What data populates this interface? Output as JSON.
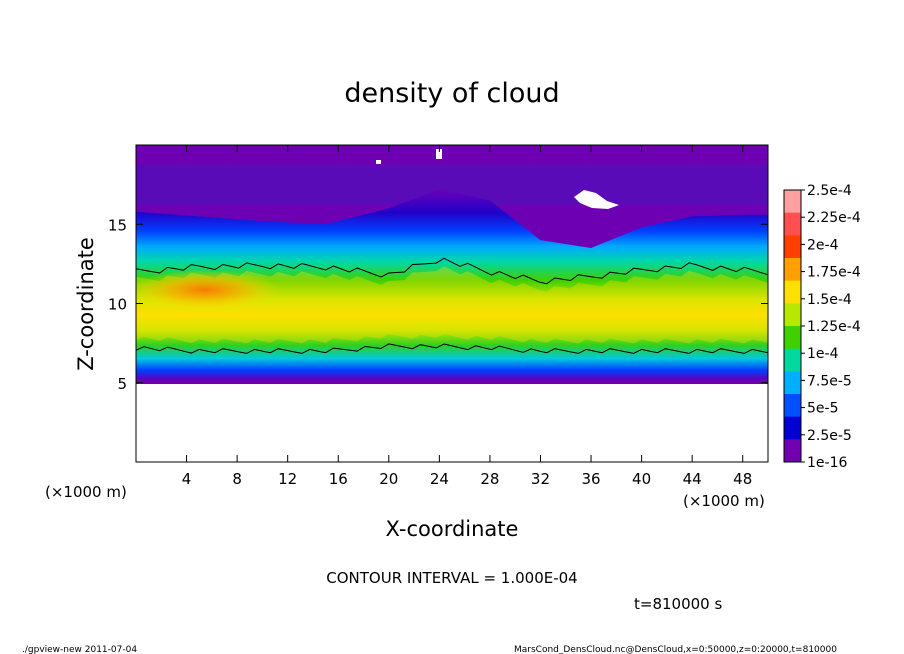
{
  "chart_data": {
    "type": "heatmap",
    "title": "density of cloud",
    "xlabel": "X-coordinate",
    "ylabel": "Z-coordinate",
    "x_unit": "(×1000 m)",
    "y_unit": "(×1000 m)",
    "xlim": [
      0,
      50
    ],
    "ylim": [
      0,
      20
    ],
    "x_ticks": [
      4,
      8,
      12,
      16,
      20,
      24,
      28,
      32,
      36,
      40,
      44,
      48
    ],
    "y_ticks": [
      5,
      10,
      15
    ],
    "colorbar": {
      "labels": [
        "2.5e-4",
        "2.25e-4",
        "2e-4",
        "1.75e-4",
        "1.5e-4",
        "1.25e-4",
        "1e-4",
        "7.5e-5",
        "5e-5",
        "2.5e-5",
        "1e-16"
      ],
      "colors": [
        "#ffa0a0",
        "#ff5050",
        "#ff4000",
        "#ffa000",
        "#ffe000",
        "#b8e800",
        "#40d000",
        "#00d8a0",
        "#00b0ff",
        "#0050ff",
        "#0000d0",
        "#7000b0"
      ]
    },
    "contour_interval": "CONTOUR INTERVAL = 1.000E-04",
    "time": "t=810000 s",
    "cloud_layer": [
      {
        "x": 0,
        "bottom": 5.2,
        "top": 15.8,
        "core_low": 7.2,
        "core_high": 12.0
      },
      {
        "x": 5,
        "bottom": 5.2,
        "top": 15.5,
        "core_low": 7.0,
        "core_high": 12.3
      },
      {
        "x": 10,
        "bottom": 5.2,
        "top": 15.2,
        "core_low": 7.0,
        "core_high": 12.4
      },
      {
        "x": 15,
        "bottom": 5.2,
        "top": 15.0,
        "core_low": 7.0,
        "core_high": 12.3
      },
      {
        "x": 20,
        "bottom": 5.2,
        "top": 16.0,
        "core_low": 7.3,
        "core_high": 11.8
      },
      {
        "x": 24,
        "bottom": 5.2,
        "top": 17.2,
        "core_low": 7.3,
        "core_high": 12.8
      },
      {
        "x": 28,
        "bottom": 5.2,
        "top": 16.5,
        "core_low": 7.2,
        "core_high": 12.0
      },
      {
        "x": 32,
        "bottom": 5.2,
        "top": 14.0,
        "core_low": 7.0,
        "core_high": 11.4
      },
      {
        "x": 36,
        "bottom": 5.2,
        "top": 13.5,
        "core_low": 7.0,
        "core_high": 11.7
      },
      {
        "x": 40,
        "bottom": 5.2,
        "top": 14.8,
        "core_low": 7.0,
        "core_high": 12.1
      },
      {
        "x": 44,
        "bottom": 5.2,
        "top": 15.5,
        "core_low": 7.0,
        "core_high": 12.4
      },
      {
        "x": 48,
        "bottom": 5.2,
        "top": 15.6,
        "core_low": 7.0,
        "core_high": 12.1
      },
      {
        "x": 50,
        "bottom": 5.2,
        "top": 15.6,
        "core_low": 7.0,
        "core_high": 12.0
      }
    ],
    "max_density_region": {
      "x_range": [
        1,
        9
      ],
      "z_range": [
        10,
        12
      ],
      "value": "2e-4"
    }
  },
  "footer": {
    "program": "./gpview-new  2011-07-04",
    "source": "MarsCond_DensCloud.nc@DensCloud,x=0:50000,z=0:20000,t=810000"
  },
  "colors": {
    "background": "#7000b0",
    "empty": "#ffffff"
  }
}
